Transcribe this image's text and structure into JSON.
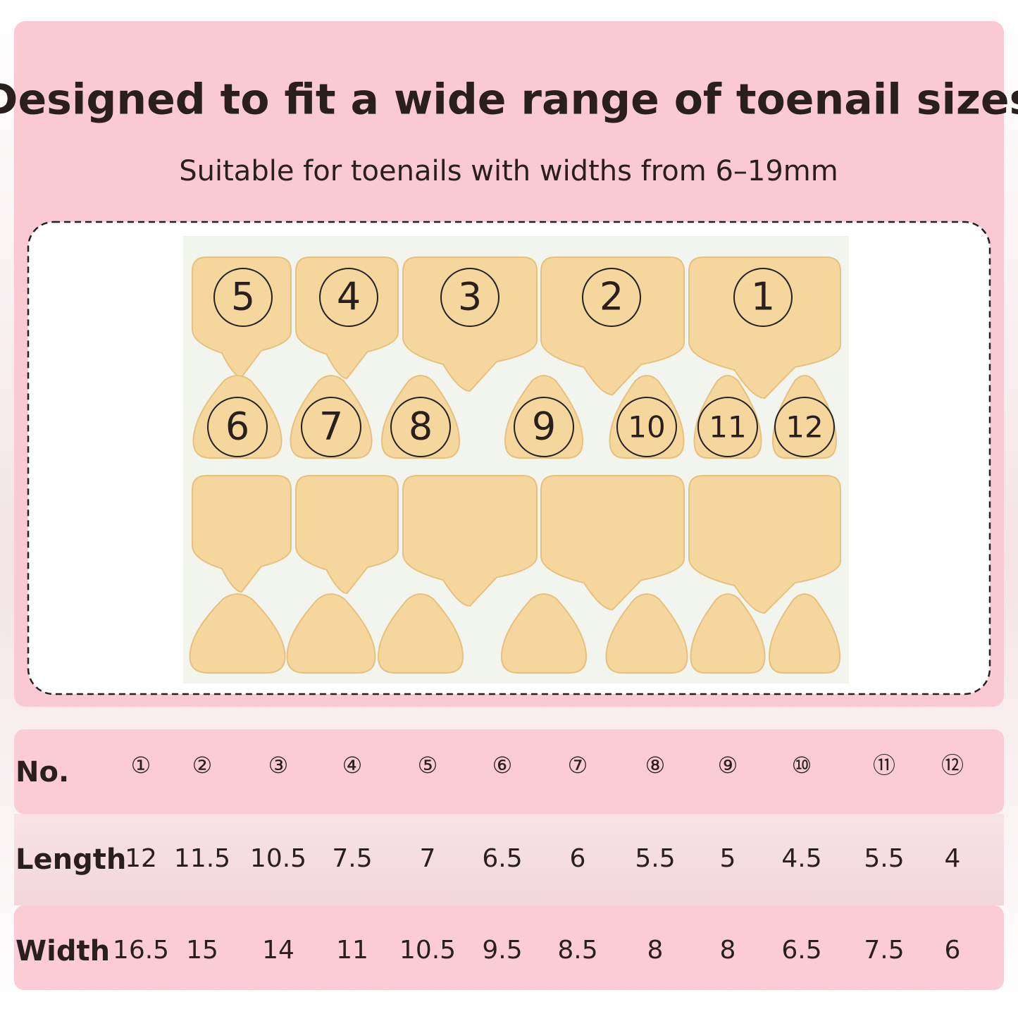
{
  "header": {
    "title": "Designed to fit a wide range of toenail sizes",
    "subtitle": "Suitable for toenails with widths from 6–19mm"
  },
  "photo": {
    "labels": [
      "5",
      "4",
      "3",
      "2",
      "1",
      "6",
      "7",
      "8",
      "9",
      "10",
      "11",
      "12"
    ]
  },
  "table": {
    "rows": [
      [
        "No.",
        "①",
        "②",
        "③",
        "④",
        "⑤",
        "⑥",
        "⑦",
        "⑧",
        "⑨",
        "⑩",
        "⑪",
        "⑫"
      ],
      [
        "Length",
        "12",
        "11.5",
        "10.5",
        "7.5",
        "7",
        "6.5",
        "6",
        "5.5",
        "5",
        "4.5",
        "5.5",
        "4"
      ],
      [
        "Width",
        "16.5",
        "15",
        "14",
        "11",
        "10.5",
        "9.5",
        "8.5",
        "8",
        "8",
        "6.5",
        "7.5",
        "6"
      ]
    ]
  }
}
